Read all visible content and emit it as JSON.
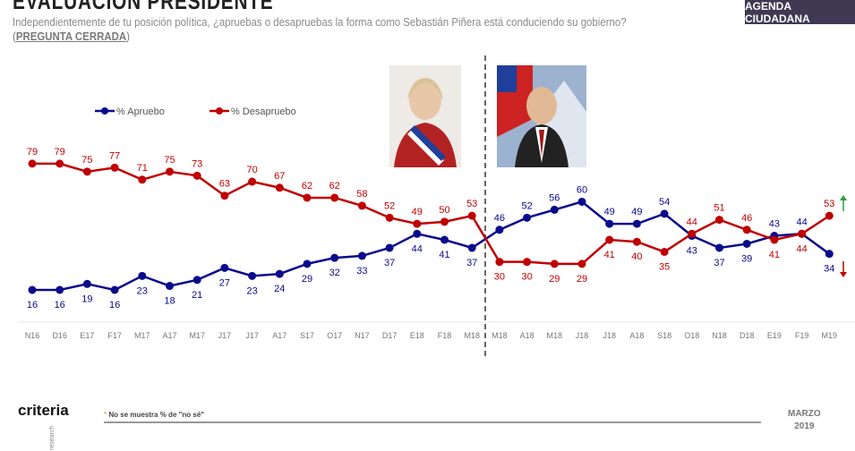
{
  "header": {
    "title": "EVALUACIÓN PRESIDENTE",
    "question": "Independientemente de tu posición política, ¿apruebas o desapruebas la forma como Sebastián Piñera está conduciendo su gobierno?",
    "closed_label": "PREGUNTA CERRADA",
    "badge": "AGENDA CIUDADANA"
  },
  "footer": {
    "logo": "criteria",
    "logo_sub": "research",
    "note_prefix": "*",
    "note": "No se muestra % de \"no sé\"",
    "month": "MARZO",
    "year": "2019"
  },
  "colors": {
    "approve": "#0a0a8c",
    "disapprove": "#c00000",
    "up_arrow": "#2e9e3e",
    "down_arrow": "#c00000"
  },
  "chart_data": {
    "type": "line",
    "categories": [
      "N16",
      "D16",
      "E17",
      "F17",
      "M17",
      "A17",
      "M17",
      "J17",
      "J17",
      "A17",
      "S17",
      "O17",
      "N17",
      "D17",
      "E18",
      "F18",
      "M18",
      "M18",
      "A18",
      "M18",
      "J18",
      "J18",
      "A18",
      "S18",
      "O18",
      "N18",
      "D18",
      "E19",
      "F19",
      "M19"
    ],
    "series": [
      {
        "name": "% Apruebo",
        "values": [
          16,
          16,
          19,
          16,
          23,
          18,
          21,
          27,
          23,
          24,
          29,
          32,
          33,
          37,
          44,
          41,
          37,
          46,
          52,
          56,
          60,
          49,
          49,
          54,
          43,
          37,
          39,
          43,
          44,
          34
        ]
      },
      {
        "name": "% Desapruebo",
        "values": [
          79,
          79,
          75,
          77,
          71,
          75,
          73,
          63,
          70,
          67,
          62,
          62,
          58,
          52,
          49,
          50,
          53,
          30,
          30,
          29,
          29,
          41,
          40,
          35,
          44,
          51,
          46,
          41,
          44,
          53
        ]
      }
    ],
    "legend": "top-left",
    "grid": false,
    "annotations": [
      "government change between the two M18 points (dashed vertical line)",
      "trend arrows: approve up, disapprove down"
    ]
  }
}
